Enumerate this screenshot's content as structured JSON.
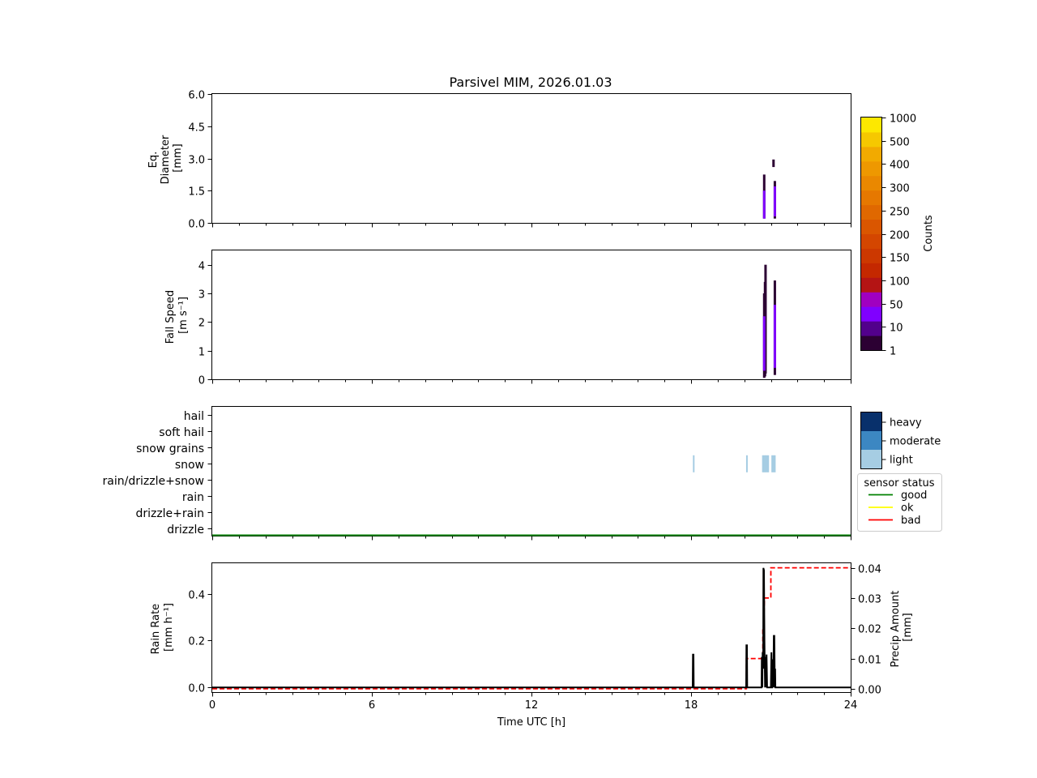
{
  "chart_data": [
    {
      "type": "heatmap",
      "panel": "diameter",
      "title": "Parsivel MIM, 2026.01.03",
      "ylabel_lines": [
        "Eq.",
        "Diameter",
        "[mm]"
      ],
      "ylim": [
        0,
        6.0
      ],
      "yticks": [
        "0.0",
        "1.5",
        "3.0",
        "4.5",
        "6.0"
      ],
      "tick_values": [
        0,
        1.5,
        3.0,
        4.5,
        6.0
      ],
      "xlim": [
        0,
        24
      ],
      "segments": [
        {
          "x": 20.75,
          "y0": 0.2,
          "y1": 2.25,
          "level": "1"
        },
        {
          "x": 20.75,
          "y0": 0.2,
          "y1": 1.5,
          "level": "10"
        },
        {
          "x": 21.15,
          "y0": 0.2,
          "y1": 1.95,
          "level": "1"
        },
        {
          "x": 21.15,
          "y0": 0.3,
          "y1": 1.7,
          "level": "10"
        },
        {
          "x": 21.1,
          "y0": 2.6,
          "y1": 2.95,
          "level": "1"
        }
      ]
    },
    {
      "type": "heatmap",
      "panel": "fallspeed",
      "ylabel_lines": [
        "Fall Speed",
        "[m s⁻¹]"
      ],
      "ylim": [
        0,
        4.5
      ],
      "yticks": [
        "0",
        "1",
        "2",
        "3",
        "4"
      ],
      "tick_values": [
        0,
        1,
        2,
        3,
        4
      ],
      "xlim": [
        0,
        24
      ],
      "segments": [
        {
          "x": 20.75,
          "y0": 0.05,
          "y1": 3.0,
          "level": "1"
        },
        {
          "x": 20.78,
          "y0": 0.1,
          "y1": 3.4,
          "level": "1"
        },
        {
          "x": 20.8,
          "y0": 0.2,
          "y1": 4.0,
          "level": "1"
        },
        {
          "x": 20.75,
          "y0": 0.3,
          "y1": 2.2,
          "level": "10"
        },
        {
          "x": 21.15,
          "y0": 0.15,
          "y1": 3.45,
          "level": "1"
        },
        {
          "x": 21.15,
          "y0": 0.4,
          "y1": 2.6,
          "level": "10"
        }
      ]
    },
    {
      "type": "scatter",
      "panel": "precip_type",
      "categories": [
        "hail",
        "soft hail",
        "snow grains",
        "snow",
        "rain/drizzle+snow",
        "rain",
        "drizzle+rain",
        "drizzle"
      ],
      "xlim": [
        0,
        24
      ],
      "events": [
        {
          "x": 18.1,
          "category": "snow",
          "intensity": "light"
        },
        {
          "x": 20.1,
          "category": "snow",
          "intensity": "light"
        },
        {
          "x": 20.7,
          "category": "snow",
          "intensity": "light"
        },
        {
          "x": 20.75,
          "category": "snow",
          "intensity": "light"
        },
        {
          "x": 20.8,
          "category": "snow",
          "intensity": "light"
        },
        {
          "x": 20.85,
          "category": "snow",
          "intensity": "light"
        },
        {
          "x": 20.9,
          "category": "snow",
          "intensity": "light"
        },
        {
          "x": 21.05,
          "category": "snow",
          "intensity": "light"
        },
        {
          "x": 21.1,
          "category": "snow",
          "intensity": "light"
        },
        {
          "x": 21.15,
          "category": "snow",
          "intensity": "light"
        }
      ],
      "sensor_status": [
        {
          "x0": 0,
          "x1": 24,
          "status": "good"
        }
      ]
    },
    {
      "type": "line",
      "panel": "rain",
      "xlabel": "Time UTC [h]",
      "xticks": [
        "0",
        "6",
        "12",
        "18",
        "24"
      ],
      "xtick_values": [
        0,
        6,
        12,
        18,
        24
      ],
      "xlim": [
        0,
        24
      ],
      "ylabel_lines": [
        "Rain Rate",
        "[mm h⁻¹]"
      ],
      "ylim": [
        -0.02,
        0.53
      ],
      "yticks": [
        "0.0",
        "0.2",
        "0.4"
      ],
      "ytick_values": [
        0,
        0.2,
        0.4
      ],
      "y2label_lines": [
        "Precip Amount",
        "[mm]"
      ],
      "y2lim": [
        -0.0011,
        0.0415
      ],
      "y2ticks": [
        "0.00",
        "0.01",
        "0.02",
        "0.03",
        "0.04"
      ],
      "y2tick_values": [
        0,
        0.01,
        0.02,
        0.03,
        0.04
      ],
      "series": [
        {
          "name": "Rain Rate",
          "color": "#000000",
          "style": "solid",
          "x": [
            0,
            18.06,
            18.07,
            18.09,
            18.1,
            20.07,
            20.08,
            20.1,
            20.11,
            20.65,
            20.66,
            20.68,
            20.69,
            20.71,
            20.72,
            20.74,
            20.76,
            20.78,
            20.8,
            20.82,
            20.84,
            20.86,
            20.88,
            20.9,
            20.92,
            20.94,
            20.95,
            21.0,
            21.02,
            21.04,
            21.05,
            21.07,
            21.09,
            21.11,
            21.13,
            21.15,
            21.16,
            21.17,
            24
          ],
          "y": [
            0,
            0,
            0.14,
            0.14,
            0,
            0,
            0.18,
            0.18,
            0,
            0,
            0.13,
            0,
            0.15,
            0.08,
            0.51,
            0.5,
            0.2,
            0,
            0.13,
            0,
            0.14,
            0,
            0,
            0,
            0,
            0,
            0,
            0,
            0.15,
            0,
            0,
            0.12,
            0,
            0.22,
            0.22,
            0,
            0.08,
            0,
            0
          ]
        },
        {
          "name": "Precip Amount",
          "color": "#ff0000",
          "style": "dashed",
          "x": [
            0,
            20.08,
            20.08,
            20.7,
            20.7,
            20.73,
            20.76,
            20.76,
            21.0,
            21.0,
            24
          ],
          "y": [
            0,
            0,
            0.01,
            0.01,
            0.02,
            0.02,
            0.03,
            0.03,
            0.03,
            0.04,
            0.04
          ]
        }
      ]
    }
  ],
  "colorbar": {
    "label": "Counts",
    "tick_labels": [
      "1",
      "10",
      "50",
      "100",
      "150",
      "200",
      "250",
      "300",
      "400",
      "500",
      "1000"
    ],
    "colors": [
      "#2c0033",
      "#52008c",
      "#8000ff",
      "#a000c0",
      "#b41414",
      "#c42800",
      "#cc3800",
      "#d44600",
      "#da5600",
      "#e06800",
      "#e67800",
      "#ea8800",
      "#ee9800",
      "#f2aa00",
      "#f6c800",
      "#fde800"
    ],
    "level_colors": {
      "1": "#2c0033",
      "10": "#8000ff"
    }
  },
  "intensity_legend": [
    {
      "label": "heavy",
      "color": "#08306b"
    },
    {
      "label": "moderate",
      "color": "#3c87c2"
    },
    {
      "label": "light",
      "color": "#a6cde3"
    }
  ],
  "status_legend": {
    "title": "sensor status",
    "items": [
      {
        "label": "good",
        "color": "#008000"
      },
      {
        "label": "ok",
        "color": "#ffff00"
      },
      {
        "label": "bad",
        "color": "#ff0000"
      }
    ]
  }
}
